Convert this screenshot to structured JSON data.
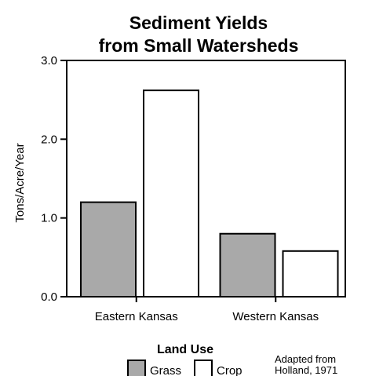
{
  "chart_data": {
    "type": "bar",
    "title_lines": [
      "Sediment Yields",
      "from Small Watersheds"
    ],
    "ylabel": "Tons/Acre/Year",
    "xlabel": "",
    "ylim": [
      0,
      3
    ],
    "yticks": [
      "0.0",
      "1.0",
      "2.0",
      "3.0"
    ],
    "categories": [
      "Eastern Kansas",
      "Western Kansas"
    ],
    "series": [
      {
        "name": "Grass",
        "color": "#a9a9a9",
        "values": [
          1.2,
          0.8
        ]
      },
      {
        "name": "Crop",
        "color": "#ffffff",
        "values": [
          2.62,
          0.58
        ]
      }
    ],
    "legend": {
      "title": "Land Use",
      "placement": "bottom-center"
    },
    "source_lines": [
      "Adapted from",
      "Holland, 1971"
    ]
  }
}
